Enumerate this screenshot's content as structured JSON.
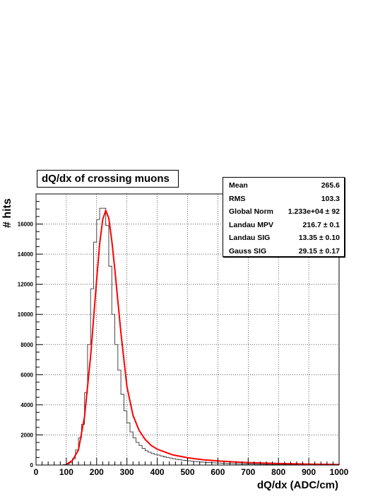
{
  "chart_data": {
    "type": "histogram",
    "title": "dQ/dx of crossing muons",
    "xlabel": "dQ/dx (ADC/cm)",
    "ylabel": "# hits",
    "xlim": [
      0,
      1000
    ],
    "ylim": [
      0,
      18000
    ],
    "x_ticks": [
      0,
      100,
      200,
      300,
      400,
      500,
      600,
      700,
      800,
      900,
      1000
    ],
    "y_ticks": [
      0,
      2000,
      4000,
      6000,
      8000,
      10000,
      12000,
      14000,
      16000
    ],
    "grid": true,
    "bin_width": 10,
    "histogram": {
      "bin_edges_start": 0,
      "values": [
        0,
        0,
        0,
        0,
        0,
        0,
        0,
        0,
        0,
        30,
        60,
        150,
        420,
        1000,
        1800,
        2700,
        4800,
        8000,
        11700,
        14800,
        16300,
        17050,
        17050,
        15900,
        13200,
        10000,
        8000,
        6300,
        4700,
        3600,
        2800,
        2200,
        1800,
        1500,
        1300,
        1100,
        950,
        850,
        760,
        700,
        660,
        600,
        540,
        500,
        460,
        420,
        380,
        350,
        320,
        300,
        280,
        260,
        240,
        220,
        200,
        185,
        170,
        160,
        150,
        140,
        130,
        120,
        110,
        100,
        95,
        90,
        85,
        80,
        75,
        70,
        65,
        60,
        55,
        52,
        49,
        46,
        43,
        40,
        38,
        36,
        34,
        32,
        30,
        28,
        26,
        25,
        24,
        23,
        22,
        21,
        20,
        19,
        18,
        17,
        16,
        15,
        14,
        13,
        12,
        11
      ]
    },
    "fit_curve": {
      "color": "#ff0000",
      "x": [
        100,
        120,
        140,
        160,
        180,
        200,
        210,
        220,
        230,
        240,
        250,
        260,
        280,
        300,
        320,
        340,
        360,
        380,
        400,
        450,
        500,
        550,
        600,
        650,
        700,
        750,
        800,
        850,
        900,
        950,
        1000
      ],
      "y": [
        50,
        300,
        1000,
        3200,
        7200,
        12300,
        14700,
        16300,
        16900,
        16400,
        14900,
        13000,
        8800,
        5200,
        3300,
        2300,
        1700,
        1300,
        1050,
        680,
        480,
        350,
        270,
        210,
        160,
        130,
        100,
        80,
        60,
        45,
        30
      ]
    }
  },
  "stats": [
    {
      "label": "Mean",
      "value": "265.6"
    },
    {
      "label": "RMS",
      "value": "103.3"
    },
    {
      "label": "Global Norm",
      "value": "1.233e+04 ± 92"
    },
    {
      "label": "Landau MPV",
      "value": "216.7 ± 0.1"
    },
    {
      "label": "Landau SIG",
      "value": "13.35 ± 0.10"
    },
    {
      "label": "Gauss SIG",
      "value": "29.15 ± 0.17"
    }
  ]
}
